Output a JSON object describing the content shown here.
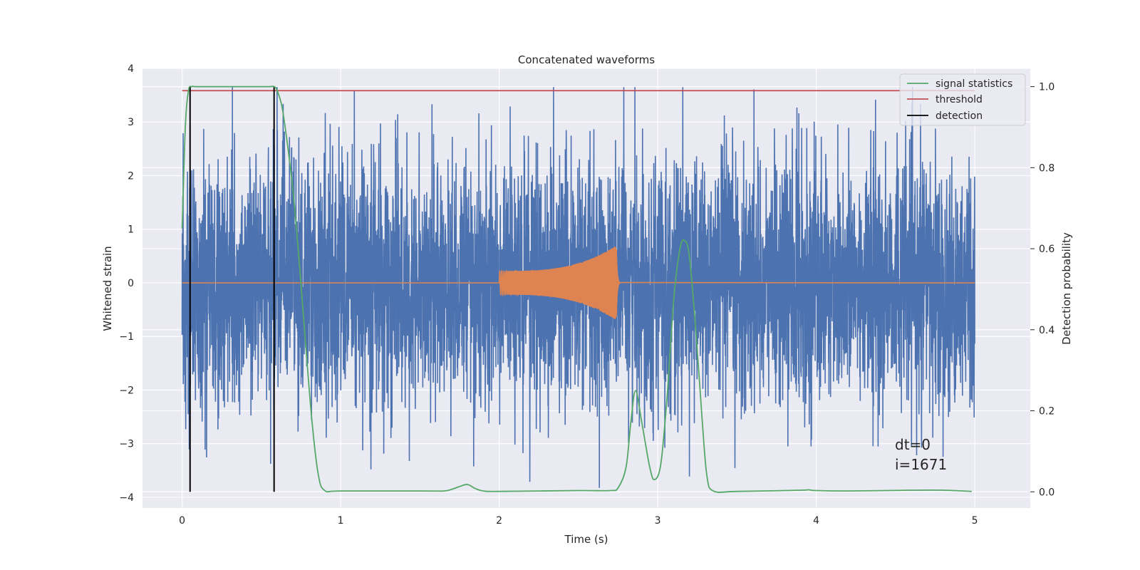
{
  "chart_data": {
    "type": "line",
    "title": "Concatenated waveforms",
    "xlabel": "Time (s)",
    "ylabel": "Whitened strain",
    "y2label": "Detection probability",
    "xlim": [
      -0.25,
      5.35
    ],
    "ylim": [
      -4.2,
      4.0
    ],
    "y2lim": [
      -0.04,
      1.045
    ],
    "xticks": [
      "0",
      "1",
      "2",
      "3",
      "4",
      "5"
    ],
    "yticks": [
      "4",
      "3",
      "2",
      "1",
      "0",
      "−1",
      "−2",
      "−3",
      "−4"
    ],
    "y2ticks": [
      "1.0",
      "0.8",
      "0.6",
      "0.4",
      "0.2",
      "0.0"
    ],
    "grid": true,
    "legend_position": "top-right",
    "legend": [
      "signal statistics",
      "threshold",
      "detection"
    ],
    "annotation": [
      "dt=0",
      "i=1671"
    ],
    "noise": {
      "name": "",
      "color": "#4c72b0",
      "x_range": [
        0,
        5
      ],
      "typical_amplitude": 2.3,
      "min_peak": -3.85,
      "max_peak": 3.65
    },
    "injected_signal": {
      "name": "",
      "color": "#dd8452",
      "x_range": [
        2.0,
        2.76
      ],
      "start_amplitude": 0.22,
      "peak_amplitude": 0.7,
      "peak_time": 2.74
    },
    "signal_statistics": {
      "name": "signal statistics",
      "color": "#55a868",
      "axis": "right",
      "x": [
        0.0,
        0.02,
        0.04,
        0.06,
        0.08,
        0.1,
        0.2,
        0.3,
        0.4,
        0.5,
        0.55,
        0.58,
        0.6,
        0.63,
        0.66,
        0.7,
        0.74,
        0.78,
        0.82,
        0.86,
        0.9,
        1.0,
        1.5,
        1.65,
        1.7,
        1.75,
        1.8,
        1.85,
        1.9,
        2.0,
        2.5,
        2.7,
        2.75,
        2.8,
        2.83,
        2.86,
        2.9,
        2.95,
        2.98,
        3.02,
        3.06,
        3.1,
        3.14,
        3.17,
        3.2,
        3.24,
        3.28,
        3.31,
        3.35,
        3.5,
        3.9,
        3.95,
        4.0,
        4.2,
        4.6,
        4.8,
        4.98
      ],
      "y": [
        0.65,
        0.9,
        0.99,
        1.0,
        1.0,
        1.0,
        1.0,
        1.0,
        1.0,
        1.0,
        1.0,
        1.0,
        0.99,
        0.95,
        0.87,
        0.74,
        0.56,
        0.36,
        0.17,
        0.04,
        0.003,
        0.002,
        0.002,
        0.002,
        0.006,
        0.013,
        0.018,
        0.008,
        0.002,
        0.001,
        0.003,
        0.003,
        0.01,
        0.06,
        0.17,
        0.25,
        0.17,
        0.06,
        0.03,
        0.07,
        0.24,
        0.47,
        0.6,
        0.62,
        0.58,
        0.4,
        0.18,
        0.04,
        0.002,
        0.001,
        0.004,
        0.005,
        0.003,
        0.002,
        0.004,
        0.004,
        0.001
      ]
    },
    "threshold": {
      "name": "threshold",
      "color": "#c44e52",
      "axis": "right",
      "value": 0.99,
      "x_range": [
        0,
        5
      ]
    },
    "detections": {
      "name": "detection",
      "color": "#000000",
      "axis": "right",
      "x": [
        0.05,
        0.58
      ],
      "y_range": [
        0,
        1.0
      ]
    }
  }
}
